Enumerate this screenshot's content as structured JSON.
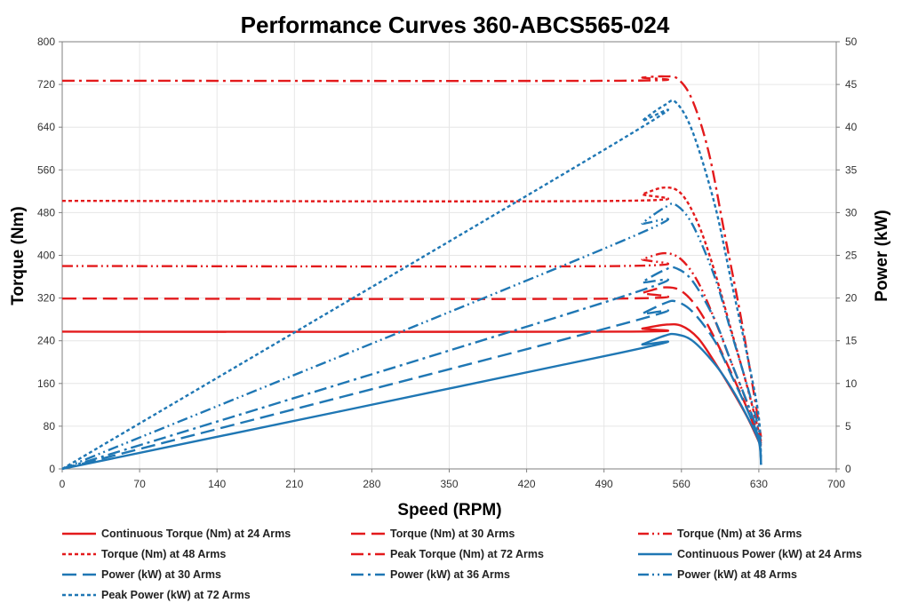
{
  "chart_data": {
    "type": "line",
    "title": "Performance Curves 360-ABCS565-024",
    "xlabel": "Speed (RPM)",
    "ylabel": "Torque (Nm)",
    "y2label": "Power (kW)",
    "xlim": [
      0,
      700
    ],
    "ylim": [
      0,
      800
    ],
    "y2lim": [
      0,
      50
    ],
    "x_ticks": [
      0,
      70,
      140,
      210,
      280,
      350,
      420,
      490,
      560,
      630,
      700
    ],
    "y_ticks": [
      0,
      80,
      160,
      240,
      320,
      400,
      480,
      560,
      640,
      720,
      800
    ],
    "y2_ticks": [
      0,
      5,
      10,
      15,
      20,
      25,
      30,
      35,
      40,
      45,
      50
    ],
    "grid": true,
    "legend_position": "bottom",
    "series": [
      {
        "name": "Continuous Torque (Nm) at 24 Arms",
        "axis": "left",
        "color": "#e31a1c",
        "dash": "solid",
        "points": [
          [
            0,
            257
          ],
          [
            505,
            257
          ],
          [
            525,
            263
          ],
          [
            545,
            270
          ],
          [
            560,
            268
          ],
          [
            575,
            245
          ],
          [
            590,
            200
          ],
          [
            605,
            150
          ],
          [
            620,
            95
          ],
          [
            632,
            42
          ]
        ]
      },
      {
        "name": "Torque (Nm) at 30 Arms",
        "axis": "left",
        "color": "#e31a1c",
        "dash": "longdash",
        "points": [
          [
            0,
            319
          ],
          [
            505,
            319
          ],
          [
            525,
            330
          ],
          [
            545,
            340
          ],
          [
            560,
            333
          ],
          [
            575,
            300
          ],
          [
            590,
            245
          ],
          [
            605,
            180
          ],
          [
            620,
            110
          ],
          [
            632,
            45
          ]
        ]
      },
      {
        "name": "Torque (Nm) at 36 Arms",
        "axis": "left",
        "color": "#e31a1c",
        "dash": "dashdotdot",
        "points": [
          [
            0,
            380
          ],
          [
            505,
            380
          ],
          [
            525,
            393
          ],
          [
            545,
            404
          ],
          [
            560,
            392
          ],
          [
            575,
            350
          ],
          [
            590,
            280
          ],
          [
            605,
            200
          ],
          [
            620,
            120
          ],
          [
            632,
            48
          ]
        ]
      },
      {
        "name": "Torque (Nm) at 48 Arms",
        "axis": "left",
        "color": "#e31a1c",
        "dash": "shortdash",
        "points": [
          [
            0,
            502
          ],
          [
            505,
            502
          ],
          [
            525,
            515
          ],
          [
            545,
            527
          ],
          [
            560,
            515
          ],
          [
            575,
            460
          ],
          [
            590,
            370
          ],
          [
            605,
            260
          ],
          [
            620,
            150
          ],
          [
            632,
            52
          ]
        ]
      },
      {
        "name": "Peak Torque (Nm) at 72 Arms",
        "axis": "left",
        "color": "#e31a1c",
        "dash": "dashdot",
        "points": [
          [
            0,
            727
          ],
          [
            505,
            727
          ],
          [
            525,
            733
          ],
          [
            545,
            735
          ],
          [
            557,
            730
          ],
          [
            570,
            690
          ],
          [
            585,
            590
          ],
          [
            600,
            430
          ],
          [
            615,
            270
          ],
          [
            632,
            60
          ]
        ]
      },
      {
        "name": "Continuous Power (kW) at 24 Arms",
        "axis": "right",
        "color": "#1f77b4",
        "dash": "solid",
        "points": [
          [
            0,
            0
          ],
          [
            505,
            13.6
          ],
          [
            525,
            14.6
          ],
          [
            545,
            15.6
          ],
          [
            555,
            15.75
          ],
          [
            570,
            15.0
          ],
          [
            590,
            12.3
          ],
          [
            605,
            9.5
          ],
          [
            620,
            6.0
          ],
          [
            630,
            3.2
          ],
          [
            632,
            0.5
          ]
        ]
      },
      {
        "name": "Power (kW) at 30 Arms",
        "axis": "right",
        "color": "#1f77b4",
        "dash": "longdash",
        "points": [
          [
            0,
            0
          ],
          [
            505,
            16.9
          ],
          [
            525,
            18.2
          ],
          [
            545,
            19.4
          ],
          [
            555,
            19.6
          ],
          [
            570,
            18.4
          ],
          [
            590,
            15.0
          ],
          [
            605,
            11.0
          ],
          [
            620,
            6.8
          ],
          [
            630,
            3.5
          ],
          [
            632,
            0.5
          ]
        ]
      },
      {
        "name": "Power (kW) at 36 Arms",
        "axis": "right",
        "color": "#1f77b4",
        "dash": "dashdot",
        "points": [
          [
            0,
            0
          ],
          [
            505,
            20.1
          ],
          [
            525,
            21.9
          ],
          [
            545,
            23.3
          ],
          [
            555,
            23.5
          ],
          [
            570,
            22.0
          ],
          [
            590,
            17.5
          ],
          [
            605,
            12.5
          ],
          [
            620,
            7.6
          ],
          [
            630,
            3.8
          ],
          [
            632,
            0.5
          ]
        ]
      },
      {
        "name": "Power (kW) at 48 Arms",
        "axis": "right",
        "color": "#1f77b4",
        "dash": "dashdotdot",
        "points": [
          [
            0,
            0
          ],
          [
            505,
            26.6
          ],
          [
            525,
            28.8
          ],
          [
            545,
            30.6
          ],
          [
            555,
            30.9
          ],
          [
            570,
            28.6
          ],
          [
            590,
            22.5
          ],
          [
            605,
            16.0
          ],
          [
            620,
            9.5
          ],
          [
            630,
            4.5
          ],
          [
            632,
            0.5
          ]
        ]
      },
      {
        "name": "Peak Power (kW) at 72 Arms",
        "axis": "right",
        "color": "#1f77b4",
        "dash": "shortdash",
        "points": [
          [
            0,
            0
          ],
          [
            505,
            38.5
          ],
          [
            525,
            40.8
          ],
          [
            545,
            42.6
          ],
          [
            555,
            42.9
          ],
          [
            570,
            39.5
          ],
          [
            590,
            31.0
          ],
          [
            605,
            22.0
          ],
          [
            620,
            13.0
          ],
          [
            630,
            6.0
          ],
          [
            632,
            0.5
          ]
        ]
      }
    ]
  }
}
